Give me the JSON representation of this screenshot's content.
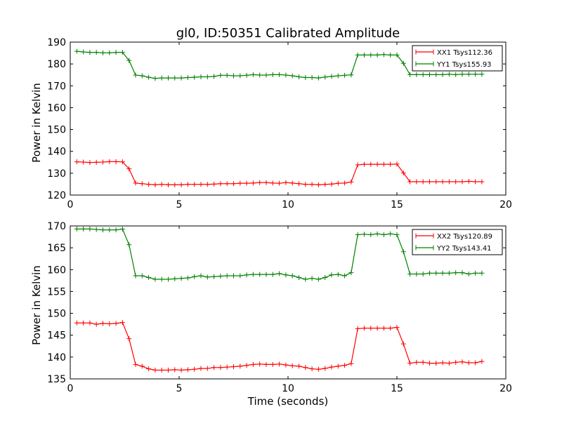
{
  "chart_data": [
    {
      "type": "line",
      "title": "gl0, ID:50351 Calibrated Amplitude",
      "xlabel": "",
      "ylabel": "Power in Kelvin",
      "xlim": [
        0,
        20
      ],
      "ylim": [
        120,
        190
      ],
      "xticks": [
        "0",
        "5",
        "10",
        "15",
        "20"
      ],
      "yticks": [
        "120",
        "130",
        "140",
        "150",
        "160",
        "170",
        "180",
        "190"
      ],
      "legend_position": "top-right",
      "grid": false,
      "x": [
        0.3,
        0.6,
        0.9,
        1.2,
        1.5,
        1.8,
        2.1,
        2.4,
        2.7,
        3.0,
        3.3,
        3.6,
        3.9,
        4.2,
        4.5,
        4.8,
        5.1,
        5.4,
        5.7,
        6.0,
        6.3,
        6.6,
        6.9,
        7.2,
        7.5,
        7.8,
        8.1,
        8.4,
        8.7,
        9.0,
        9.3,
        9.6,
        9.9,
        10.2,
        10.5,
        10.8,
        11.1,
        11.4,
        11.7,
        12.0,
        12.3,
        12.6,
        12.9,
        13.2,
        13.5,
        13.8,
        14.1,
        14.4,
        14.7,
        15.0,
        15.3,
        15.6,
        15.9,
        16.2,
        16.5,
        16.8,
        17.1,
        17.4,
        17.7,
        18.0,
        18.3,
        18.6,
        18.9
      ],
      "series": [
        {
          "name": "XX1 Tsys112.36",
          "color": "#ff0000",
          "values": [
            135.2,
            135.1,
            134.9,
            135.0,
            135.1,
            135.3,
            135.3,
            135.2,
            132.0,
            125.5,
            125.2,
            124.9,
            124.7,
            124.9,
            124.7,
            124.7,
            124.7,
            124.9,
            124.9,
            124.9,
            124.9,
            125.0,
            125.2,
            125.2,
            125.2,
            125.4,
            125.4,
            125.5,
            125.7,
            125.7,
            125.5,
            125.4,
            125.7,
            125.5,
            125.2,
            124.9,
            124.9,
            124.7,
            124.9,
            125.0,
            125.4,
            125.5,
            126.0,
            133.8,
            134.1,
            134.1,
            134.1,
            134.1,
            134.1,
            134.2,
            130.1,
            126.1,
            126.1,
            126.1,
            126.1,
            126.1,
            126.1,
            126.1,
            126.1,
            126.1,
            126.3,
            126.1,
            126.1
          ]
        },
        {
          "name": "YY1 Tsys155.93",
          "color": "#008000",
          "values": [
            185.8,
            185.5,
            185.3,
            185.3,
            185.1,
            185.1,
            185.3,
            185.3,
            181.6,
            174.9,
            174.6,
            173.9,
            173.4,
            173.6,
            173.6,
            173.6,
            173.6,
            173.8,
            173.9,
            174.1,
            174.1,
            174.3,
            174.8,
            174.8,
            174.6,
            174.6,
            174.8,
            175.1,
            174.9,
            174.9,
            175.1,
            175.1,
            174.9,
            174.6,
            174.1,
            173.8,
            173.8,
            173.6,
            174.0,
            174.3,
            174.6,
            174.8,
            175.0,
            184.1,
            184.1,
            184.1,
            184.1,
            184.3,
            184.1,
            184.1,
            180.3,
            175.1,
            175.1,
            175.1,
            175.1,
            175.1,
            175.1,
            175.3,
            175.1,
            175.3,
            175.3,
            175.3,
            175.3
          ]
        }
      ]
    },
    {
      "type": "line",
      "title": "",
      "xlabel": "Time (seconds)",
      "ylabel": "Power in Kelvin",
      "xlim": [
        0,
        20
      ],
      "ylim": [
        135,
        170
      ],
      "xticks": [
        "0",
        "5",
        "10",
        "15",
        "20"
      ],
      "yticks": [
        "135",
        "140",
        "145",
        "150",
        "155",
        "160",
        "165",
        "170"
      ],
      "legend_position": "top-right",
      "grid": false,
      "x": [
        0.3,
        0.6,
        0.9,
        1.2,
        1.5,
        1.8,
        2.1,
        2.4,
        2.7,
        3.0,
        3.3,
        3.6,
        3.9,
        4.2,
        4.5,
        4.8,
        5.1,
        5.4,
        5.7,
        6.0,
        6.3,
        6.6,
        6.9,
        7.2,
        7.5,
        7.8,
        8.1,
        8.4,
        8.7,
        9.0,
        9.3,
        9.6,
        9.9,
        10.2,
        10.5,
        10.8,
        11.1,
        11.4,
        11.7,
        12.0,
        12.3,
        12.6,
        12.9,
        13.2,
        13.5,
        13.8,
        14.1,
        14.4,
        14.7,
        15.0,
        15.3,
        15.6,
        15.9,
        16.2,
        16.5,
        16.8,
        17.1,
        17.4,
        17.7,
        18.0,
        18.3,
        18.6,
        18.9
      ],
      "series": [
        {
          "name": "XX2 Tsys120.89",
          "color": "#ff0000",
          "values": [
            147.8,
            147.8,
            147.8,
            147.5,
            147.7,
            147.6,
            147.7,
            147.9,
            144.2,
            138.3,
            137.9,
            137.3,
            137.0,
            137.0,
            137.0,
            137.1,
            137.0,
            137.1,
            137.2,
            137.4,
            137.4,
            137.6,
            137.6,
            137.7,
            137.8,
            137.9,
            138.1,
            138.3,
            138.4,
            138.3,
            138.3,
            138.4,
            138.2,
            138.0,
            137.9,
            137.6,
            137.3,
            137.2,
            137.4,
            137.7,
            137.9,
            138.1,
            138.5,
            146.5,
            146.6,
            146.6,
            146.6,
            146.6,
            146.6,
            146.8,
            143.0,
            138.6,
            138.8,
            138.8,
            138.6,
            138.6,
            138.7,
            138.6,
            138.8,
            138.9,
            138.7,
            138.7,
            139.0
          ]
        },
        {
          "name": "YY2 Tsys143.41",
          "color": "#008000",
          "values": [
            169.3,
            169.3,
            169.3,
            169.2,
            169.1,
            169.1,
            169.1,
            169.3,
            165.7,
            158.6,
            158.6,
            158.2,
            157.8,
            157.8,
            157.8,
            157.9,
            158.0,
            158.1,
            158.4,
            158.6,
            158.3,
            158.4,
            158.5,
            158.6,
            158.6,
            158.6,
            158.8,
            158.9,
            158.9,
            158.9,
            158.9,
            159.1,
            158.8,
            158.6,
            158.2,
            157.8,
            158.0,
            157.8,
            158.2,
            158.8,
            158.9,
            158.6,
            159.3,
            168.0,
            168.1,
            168.0,
            168.2,
            168.0,
            168.2,
            168.0,
            164.1,
            159.0,
            159.0,
            159.0,
            159.2,
            159.2,
            159.2,
            159.2,
            159.3,
            159.3,
            159.0,
            159.2,
            159.2
          ]
        }
      ]
    }
  ]
}
